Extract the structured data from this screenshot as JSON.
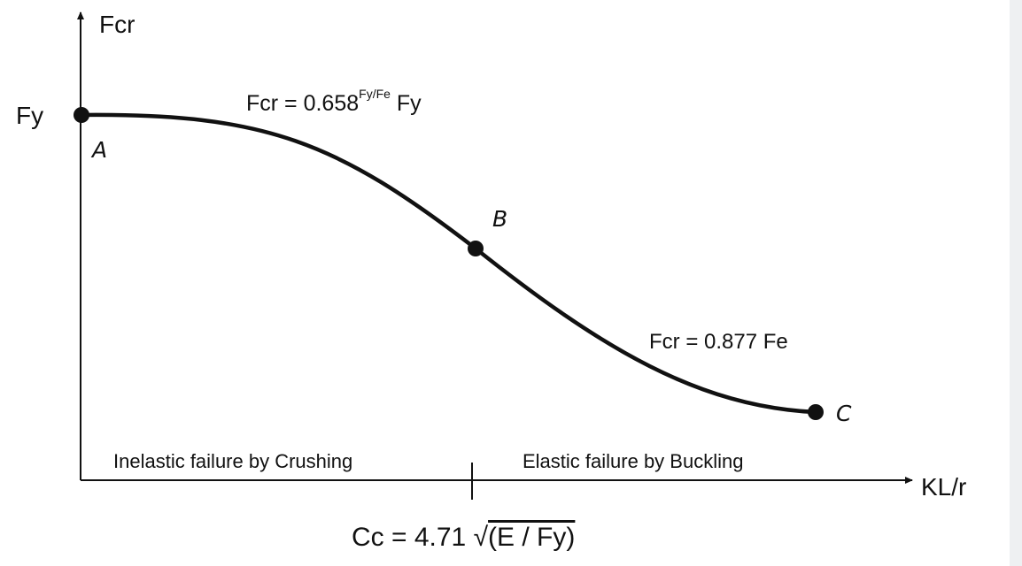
{
  "axes": {
    "y_label": "Fcr",
    "x_label": "KL/r",
    "y_tick_label": "Fy"
  },
  "points": {
    "a": "A",
    "b": "B",
    "c": "C"
  },
  "formulas": {
    "inelastic_prefix": "Fcr = 0.658",
    "inelastic_exponent": "Fy/Fe",
    "inelastic_suffix": " Fy",
    "elastic": "Fcr = 0.877 Fe"
  },
  "regions": {
    "inelastic": "Inelastic failure by Crushing",
    "elastic": "Elastic failure by Buckling"
  },
  "limit": {
    "prefix": "Cc = 4.71 ",
    "radical": "√",
    "radicand": "(E / Fy)"
  },
  "colors": {
    "ink": "#111111",
    "strip": "#eef0f2"
  }
}
